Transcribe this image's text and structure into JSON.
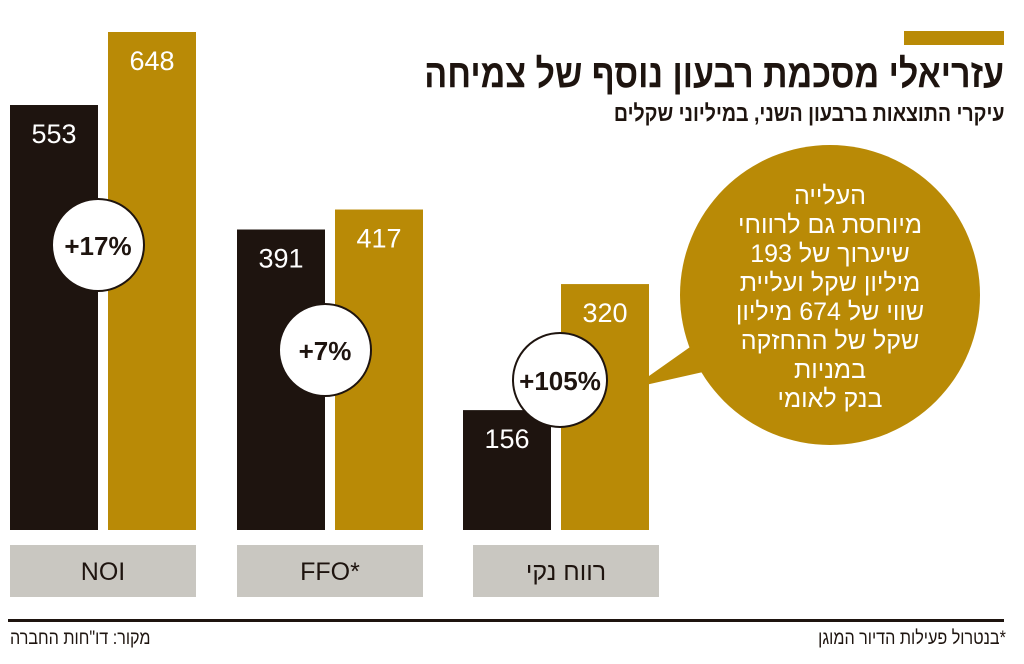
{
  "title": "עזריאלי מסכמת רבעון נוסף של צמיחה",
  "subtitle": "עיקרי התוצאות ברבעון השני, במיליוני שקלים",
  "colors": {
    "dark": "#1e140f",
    "gold": "#b98a06",
    "label_bg": "#c9c7c1"
  },
  "chart_data": {
    "type": "bar",
    "categories": [
      "NOI",
      "FFO*",
      "רווח נקי"
    ],
    "series": [
      {
        "values": [
          553,
          391,
          156
        ]
      },
      {
        "values": [
          648,
          417,
          320
        ]
      }
    ],
    "value_labels": [
      [
        "553",
        "391",
        "156"
      ],
      [
        "648",
        "417",
        "320"
      ]
    ],
    "change_labels": [
      "+17%",
      "+7%",
      "+105%"
    ],
    "ylim": [
      0,
      648
    ]
  },
  "callout": [
    "העלייה",
    "מיוחסת גם לרווחי",
    "שיערוך של 193",
    "מיליון שקל ועליית",
    "שווי של 674 מיליון",
    "שקל של ההחזקה",
    "במניות",
    "בנק לאומי"
  ],
  "footnote": "*בנטרול פעילות הדיור המוגן",
  "source": "מקור: דו\"חות החברה"
}
